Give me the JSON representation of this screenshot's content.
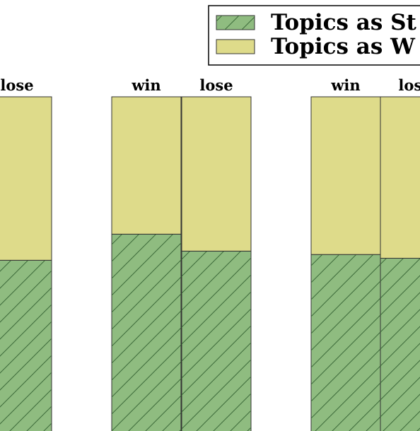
{
  "chart_data": {
    "type": "bar",
    "stacked": true,
    "categories": [
      "lose",
      "win",
      "lose",
      "win",
      "lose"
    ],
    "series": [
      {
        "name": "Topics as St",
        "color": "#8fbc80",
        "hatch": true,
        "values": [
          51.8,
          59.5,
          54.5,
          53.5,
          52.4
        ]
      },
      {
        "name": "Topics as W",
        "color": "#dedb8a",
        "hatch": false,
        "values": [
          48.2,
          40.5,
          45.5,
          46.5,
          47.6
        ]
      }
    ],
    "data_labels_series": 0,
    "ylim": [
      0,
      100
    ],
    "legend": "upper right"
  }
}
